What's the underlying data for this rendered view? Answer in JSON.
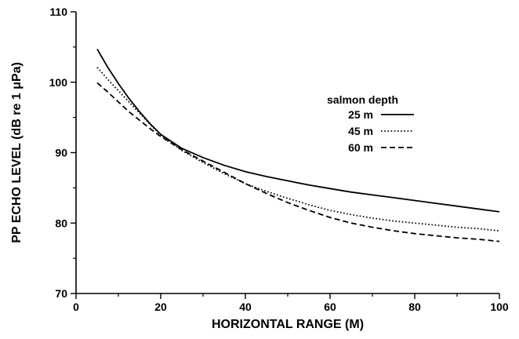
{
  "chart_data": {
    "type": "line",
    "title": "",
    "xlabel": "HORIZONTAL RANGE (M)",
    "ylabel": "PP ECHO LEVEL (dB re 1 μPa)",
    "xlim": [
      0,
      100
    ],
    "ylim": [
      70,
      110
    ],
    "xticks": [
      0,
      20,
      40,
      60,
      80,
      100
    ],
    "yticks": [
      70,
      80,
      90,
      100,
      110
    ],
    "grid": false,
    "legend": {
      "title": "salmon depth",
      "position": "upper-right"
    },
    "series": [
      {
        "name": "25 m",
        "line_style": "solid",
        "x": [
          5,
          7.5,
          10,
          12.5,
          15,
          17.5,
          20,
          25,
          30,
          35,
          40,
          45,
          50,
          55,
          60,
          65,
          70,
          75,
          80,
          85,
          90,
          95,
          100
        ],
        "y": [
          104.7,
          102.1,
          99.8,
          97.7,
          95.8,
          94.1,
          92.6,
          90.6,
          89.3,
          88.2,
          87.3,
          86.6,
          86.0,
          85.4,
          84.9,
          84.4,
          84.0,
          83.6,
          83.2,
          82.8,
          82.4,
          82.0,
          81.6
        ]
      },
      {
        "name": "45 m",
        "line_style": "dotted",
        "x": [
          5,
          7.5,
          10,
          12.5,
          15,
          17.5,
          20,
          25,
          30,
          35,
          40,
          45,
          50,
          55,
          60,
          65,
          70,
          75,
          80,
          85,
          90,
          95,
          100
        ],
        "y": [
          102.1,
          100.4,
          98.8,
          97.2,
          95.6,
          94.0,
          92.5,
          90.3,
          88.6,
          87.0,
          85.6,
          84.5,
          83.5,
          82.6,
          81.8,
          81.2,
          80.7,
          80.3,
          80.0,
          79.7,
          79.4,
          79.2,
          78.9
        ]
      },
      {
        "name": "60 m",
        "line_style": "dashed",
        "x": [
          5,
          7.5,
          10,
          12.5,
          15,
          17.5,
          20,
          25,
          30,
          35,
          40,
          45,
          50,
          55,
          60,
          65,
          70,
          75,
          80,
          85,
          90,
          95,
          100
        ],
        "y": [
          99.9,
          98.6,
          97.2,
          95.8,
          94.6,
          93.4,
          92.3,
          90.4,
          88.8,
          87.2,
          85.6,
          84.2,
          82.9,
          81.8,
          80.8,
          80.0,
          79.4,
          78.9,
          78.5,
          78.2,
          77.9,
          77.7,
          77.4
        ]
      }
    ]
  }
}
